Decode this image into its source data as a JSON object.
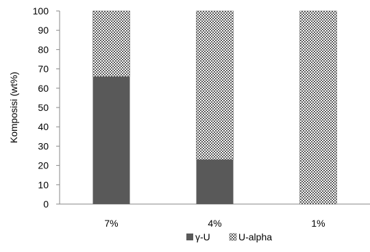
{
  "chart_data": {
    "type": "bar",
    "stacked": true,
    "categories": [
      "7%",
      "4%",
      "1%"
    ],
    "series": [
      {
        "name": "γ-U",
        "values": [
          66,
          23,
          0
        ],
        "color": "#595959",
        "pattern": "solid"
      },
      {
        "name": "U-alpha",
        "values": [
          34,
          77,
          100
        ],
        "color": "#595959",
        "pattern": "checker"
      }
    ],
    "ylabel": "Komposisi (wt%)",
    "xlabel": "",
    "ylim": [
      0,
      100
    ],
    "yticks": [
      0,
      10,
      20,
      30,
      40,
      50,
      60,
      70,
      80,
      90,
      100
    ],
    "grid": false,
    "legend_position": "bottom"
  }
}
